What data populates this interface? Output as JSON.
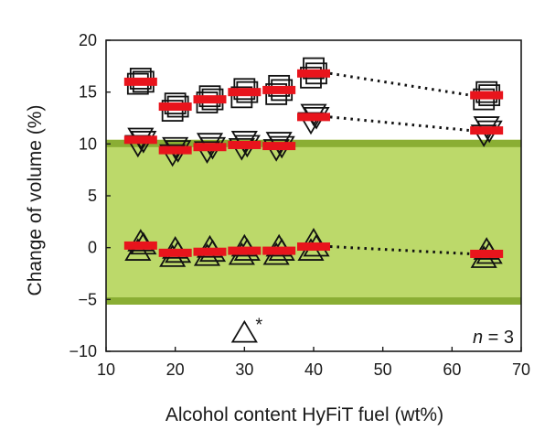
{
  "chart_data": {
    "type": "scatter",
    "xlabel": "Alcohol content HyFiT fuel (wt%)",
    "ylabel": "Change of volume (%)",
    "xlim": [
      10,
      70
    ],
    "ylim": [
      -10,
      20
    ],
    "xticks": [
      10,
      20,
      30,
      40,
      50,
      60,
      70
    ],
    "yticks": [
      -10,
      -5,
      0,
      5,
      10,
      15,
      20
    ],
    "x_tick_labels": [
      "10",
      "20",
      "30",
      "40",
      "50",
      "60",
      "70"
    ],
    "y_tick_labels": [
      "−10",
      "−5",
      "0",
      "5",
      "10",
      "15",
      "20"
    ],
    "grid": false,
    "acceptance_band": {
      "y_range": [
        -5.5,
        10.4
      ],
      "fill_color": "#bcd96a",
      "edge_color": "#8aae34"
    },
    "colors": {
      "mean_bar": "#e8141c",
      "marker": "#111111",
      "dotted_line": "#111111"
    },
    "series": [
      {
        "marker": "square",
        "x": [
          15,
          20,
          25,
          30,
          35,
          40,
          65
        ],
        "replicates": [
          [
            15.8,
            16.3,
            16.0
          ],
          [
            13.2,
            13.9,
            13.6
          ],
          [
            14.0,
            14.6,
            14.3
          ],
          [
            14.5,
            15.3,
            15.0
          ],
          [
            14.8,
            15.6,
            15.2
          ],
          [
            16.4,
            17.3,
            16.8
          ],
          [
            14.3,
            15.0,
            14.7
          ]
        ],
        "means": [
          16.0,
          13.6,
          14.3,
          15.0,
          15.2,
          16.8,
          14.7
        ],
        "dotted_from_x": 40
      },
      {
        "marker": "triangle-down",
        "x": [
          15,
          20,
          25,
          30,
          35,
          40,
          65
        ],
        "replicates": [
          [
            9.9,
            10.6,
            10.3
          ],
          [
            9.0,
            9.7,
            9.4
          ],
          [
            9.3,
            10.1,
            9.7
          ],
          [
            9.6,
            10.3,
            9.9
          ],
          [
            9.5,
            10.2,
            9.8
          ],
          [
            12.1,
            12.9,
            12.6
          ],
          [
            10.9,
            11.7,
            11.3
          ]
        ],
        "means": [
          10.4,
          9.4,
          9.7,
          9.9,
          9.8,
          12.6,
          11.3
        ],
        "dotted_from_x": 40
      },
      {
        "marker": "triangle-up",
        "x": [
          15,
          20,
          25,
          30,
          35,
          40,
          65
        ],
        "replicates": [
          [
            -0.3,
            0.6,
            0.3
          ],
          [
            -0.9,
            -0.1,
            -0.5
          ],
          [
            -0.8,
            0.0,
            -0.4
          ],
          [
            -0.7,
            0.1,
            -0.3
          ],
          [
            -0.7,
            0.1,
            -0.3
          ],
          [
            -0.3,
            0.7,
            0.1
          ],
          [
            -1.0,
            -0.2,
            -0.6
          ]
        ],
        "means": [
          0.2,
          -0.5,
          -0.4,
          -0.3,
          -0.3,
          0.1,
          -0.6
        ],
        "dotted_from_x": 40
      }
    ],
    "legend_note": {
      "marker": "triangle-up",
      "symbol": "*",
      "x": 30,
      "y": -8.2
    },
    "annotation": {
      "prefix": "n",
      "suffix": " = 3"
    }
  }
}
